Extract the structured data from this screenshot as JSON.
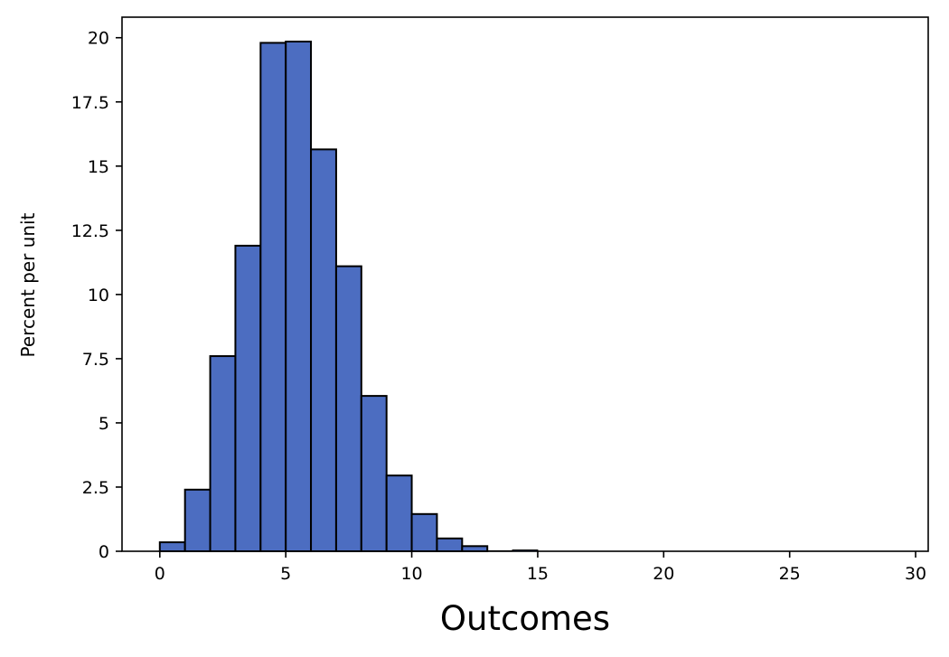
{
  "chart_data": {
    "type": "bar",
    "title": "",
    "xlabel": "Outcomes",
    "ylabel": "Percent per unit",
    "bin_width": 1,
    "bin_starts": [
      0,
      1,
      2,
      3,
      4,
      5,
      6,
      7,
      8,
      9,
      10,
      11,
      12,
      13,
      14
    ],
    "values": [
      0.35,
      2.4,
      7.6,
      11.9,
      19.8,
      19.85,
      15.65,
      11.1,
      6.05,
      2.95,
      1.45,
      0.5,
      0.2,
      0.02,
      0.05
    ],
    "xlim": [
      -1.5,
      30.5
    ],
    "ylim": [
      0,
      20.8
    ],
    "xticks": [
      0,
      5,
      10,
      15,
      20,
      25,
      30
    ],
    "xtick_labels": [
      "0",
      "5",
      "10",
      "15",
      "20",
      "25",
      "30"
    ],
    "yticks": [
      0,
      2.5,
      5,
      7.5,
      10,
      12.5,
      15,
      17.5,
      20
    ],
    "ytick_labels": [
      "0",
      "2.5",
      "5",
      "7.5",
      "10",
      "12.5",
      "15",
      "17.5",
      "20"
    ],
    "grid": false,
    "colors": {
      "bar_fill": "#4c6dc1",
      "bar_edge": "#000000",
      "axes": "#000000"
    }
  }
}
